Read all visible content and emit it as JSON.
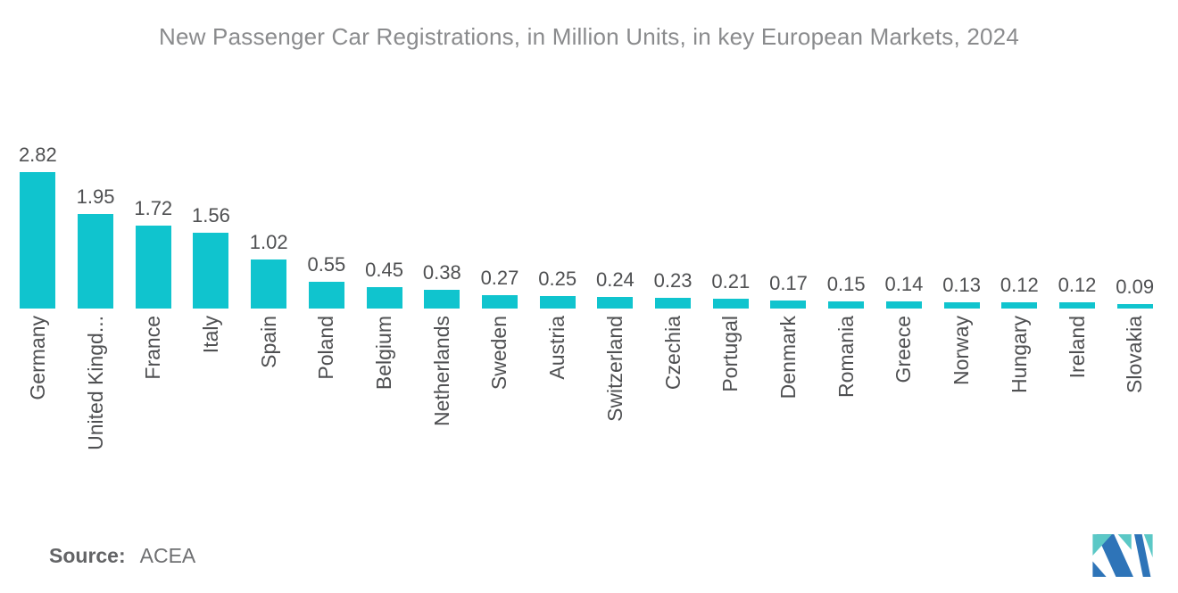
{
  "chart_data": {
    "type": "bar",
    "title": "New Passenger Car Registrations, in Million Units, in key European Markets, 2024",
    "categories": [
      "Germany",
      "United Kingd...",
      "France",
      "Italy",
      "Spain",
      "Poland",
      "Belgium",
      "Netherlands",
      "Sweden",
      "Austria",
      "Switzerland",
      "Czechia",
      "Portugal",
      "Denmark",
      "Romania",
      "Greece",
      "Norway",
      "Hungary",
      "Ireland",
      "Slovakia"
    ],
    "values": [
      2.82,
      1.95,
      1.72,
      1.56,
      1.02,
      0.55,
      0.45,
      0.38,
      0.27,
      0.25,
      0.24,
      0.23,
      0.21,
      0.17,
      0.15,
      0.14,
      0.13,
      0.12,
      0.12,
      0.09
    ],
    "value_labels": [
      "2.82",
      "1.95",
      "1.72",
      "1.56",
      "1.02",
      "0.55",
      "0.45",
      "0.38",
      "0.27",
      "0.25",
      "0.24",
      "0.23",
      "0.21",
      "0.17",
      "0.15",
      "0.14",
      "0.13",
      "0.12",
      "0.12",
      "0.09"
    ],
    "xlabel": "",
    "ylabel": "",
    "ylim": [
      0,
      2.82
    ],
    "grid": false,
    "legend": null,
    "bar_color": "#10c4ce",
    "value_label_color": "#4f5052",
    "axis_label_color": "#4f5052",
    "title_color": "#8a8b8d"
  },
  "source": {
    "label": "Source:",
    "value": "ACEA"
  },
  "logo": {
    "name": "mordor-intelligence-logo",
    "teal": "#5bc8c6",
    "blue": "#2e74b8"
  }
}
